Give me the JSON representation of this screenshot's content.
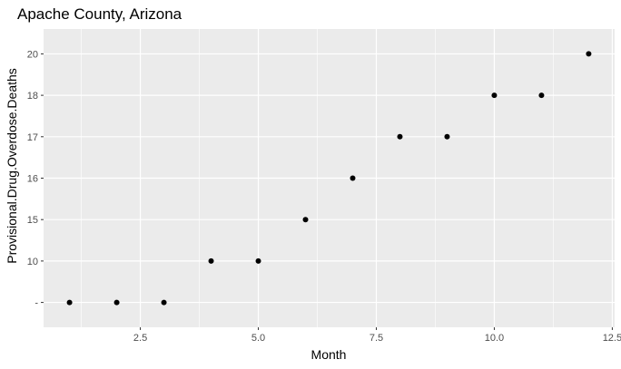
{
  "chart_data": {
    "type": "scatter",
    "title": "Apache County, Arizona",
    "xlabel": "Month",
    "ylabel": "Provisional.Drug.Overdose.Deaths",
    "xlim": [
      0.45,
      12.55
    ],
    "x_ticks": [
      2.5,
      5.0,
      7.5,
      10.0,
      12.5
    ],
    "x_tick_labels": [
      "2.5",
      "5.0",
      "7.5",
      "10.0",
      "12.5"
    ],
    "y_categories": [
      "-",
      "10",
      "15",
      "16",
      "17",
      "18",
      "20"
    ],
    "x": [
      1,
      2,
      3,
      4,
      5,
      6,
      7,
      8,
      9,
      10,
      11,
      12
    ],
    "y": [
      "-",
      "-",
      "-",
      "10",
      "10",
      "15",
      "16",
      "17",
      "17",
      "18",
      "18",
      "20"
    ],
    "grid": true,
    "background": "#ebebeb",
    "grid_color": "#ffffff",
    "point_color": "#000000"
  }
}
